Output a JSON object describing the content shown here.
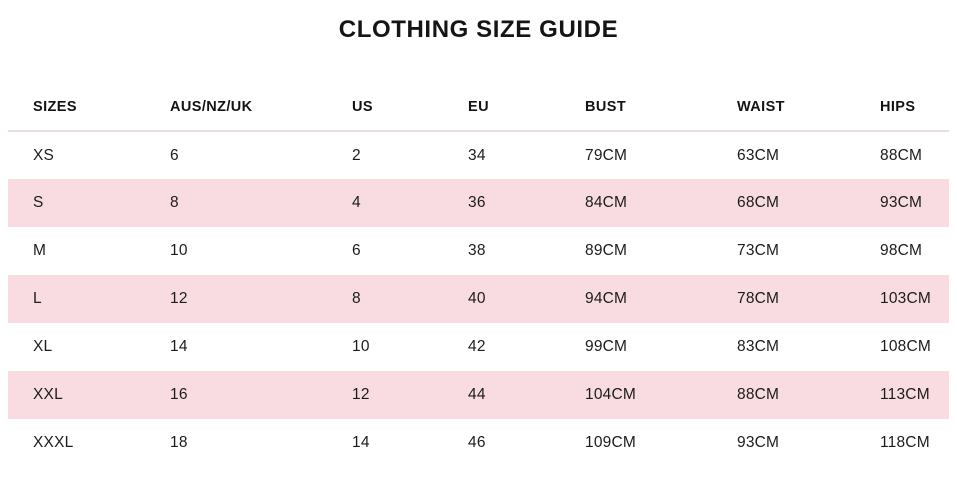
{
  "title": "CLOTHING SIZE GUIDE",
  "colors": {
    "stripe_pink": "#f8dce1",
    "header_divider": "#eedcdc",
    "text": "#1c1c1c",
    "background": "#ffffff"
  },
  "table": {
    "columns": [
      "SIZES",
      "AUS/NZ/UK",
      "US",
      "EU",
      "BUST",
      "WAIST",
      "HIPS"
    ],
    "rows": [
      [
        "XS",
        "6",
        "2",
        "34",
        "79CM",
        "63CM",
        "88CM"
      ],
      [
        "S",
        "8",
        "4",
        "36",
        "84CM",
        "68CM",
        "93CM"
      ],
      [
        "M",
        "10",
        "6",
        "38",
        "89CM",
        "73CM",
        "98CM"
      ],
      [
        "L",
        "12",
        "8",
        "40",
        "94CM",
        "78CM",
        "103CM"
      ],
      [
        "XL",
        "14",
        "10",
        "42",
        "99CM",
        "83CM",
        "108CM"
      ],
      [
        "XXL",
        "16",
        "12",
        "44",
        "104CM",
        "88CM",
        "113CM"
      ],
      [
        "XXXL",
        "18",
        "14",
        "46",
        "109CM",
        "93CM",
        "118CM"
      ]
    ]
  }
}
